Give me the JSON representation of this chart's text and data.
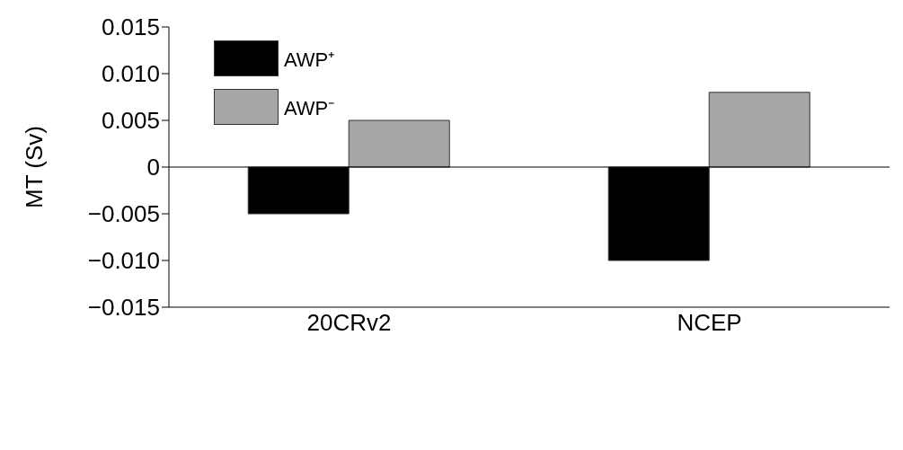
{
  "chart_data": {
    "type": "bar",
    "ylabel": "MT (Sv)",
    "categories": [
      "20CRv2",
      "NCEP"
    ],
    "series": [
      {
        "name": "AWP⁺",
        "color": "#000000",
        "values": [
          -0.005,
          -0.01
        ]
      },
      {
        "name": "AWP⁻",
        "color": "#a6a6a6",
        "values": [
          0.005,
          0.008
        ]
      }
    ],
    "ylim": [
      -0.015,
      0.015
    ],
    "yticks": [
      {
        "value": -0.015,
        "label": "−0.015"
      },
      {
        "value": -0.01,
        "label": "−0.010"
      },
      {
        "value": -0.005,
        "label": "−0.005"
      },
      0,
      0.005,
      {
        "value": 0.01,
        "label": "0.010"
      },
      0.015
    ],
    "ref_lines": [
      {
        "axis": "y",
        "value": 0
      }
    ],
    "grid": false,
    "legend": "top left"
  }
}
